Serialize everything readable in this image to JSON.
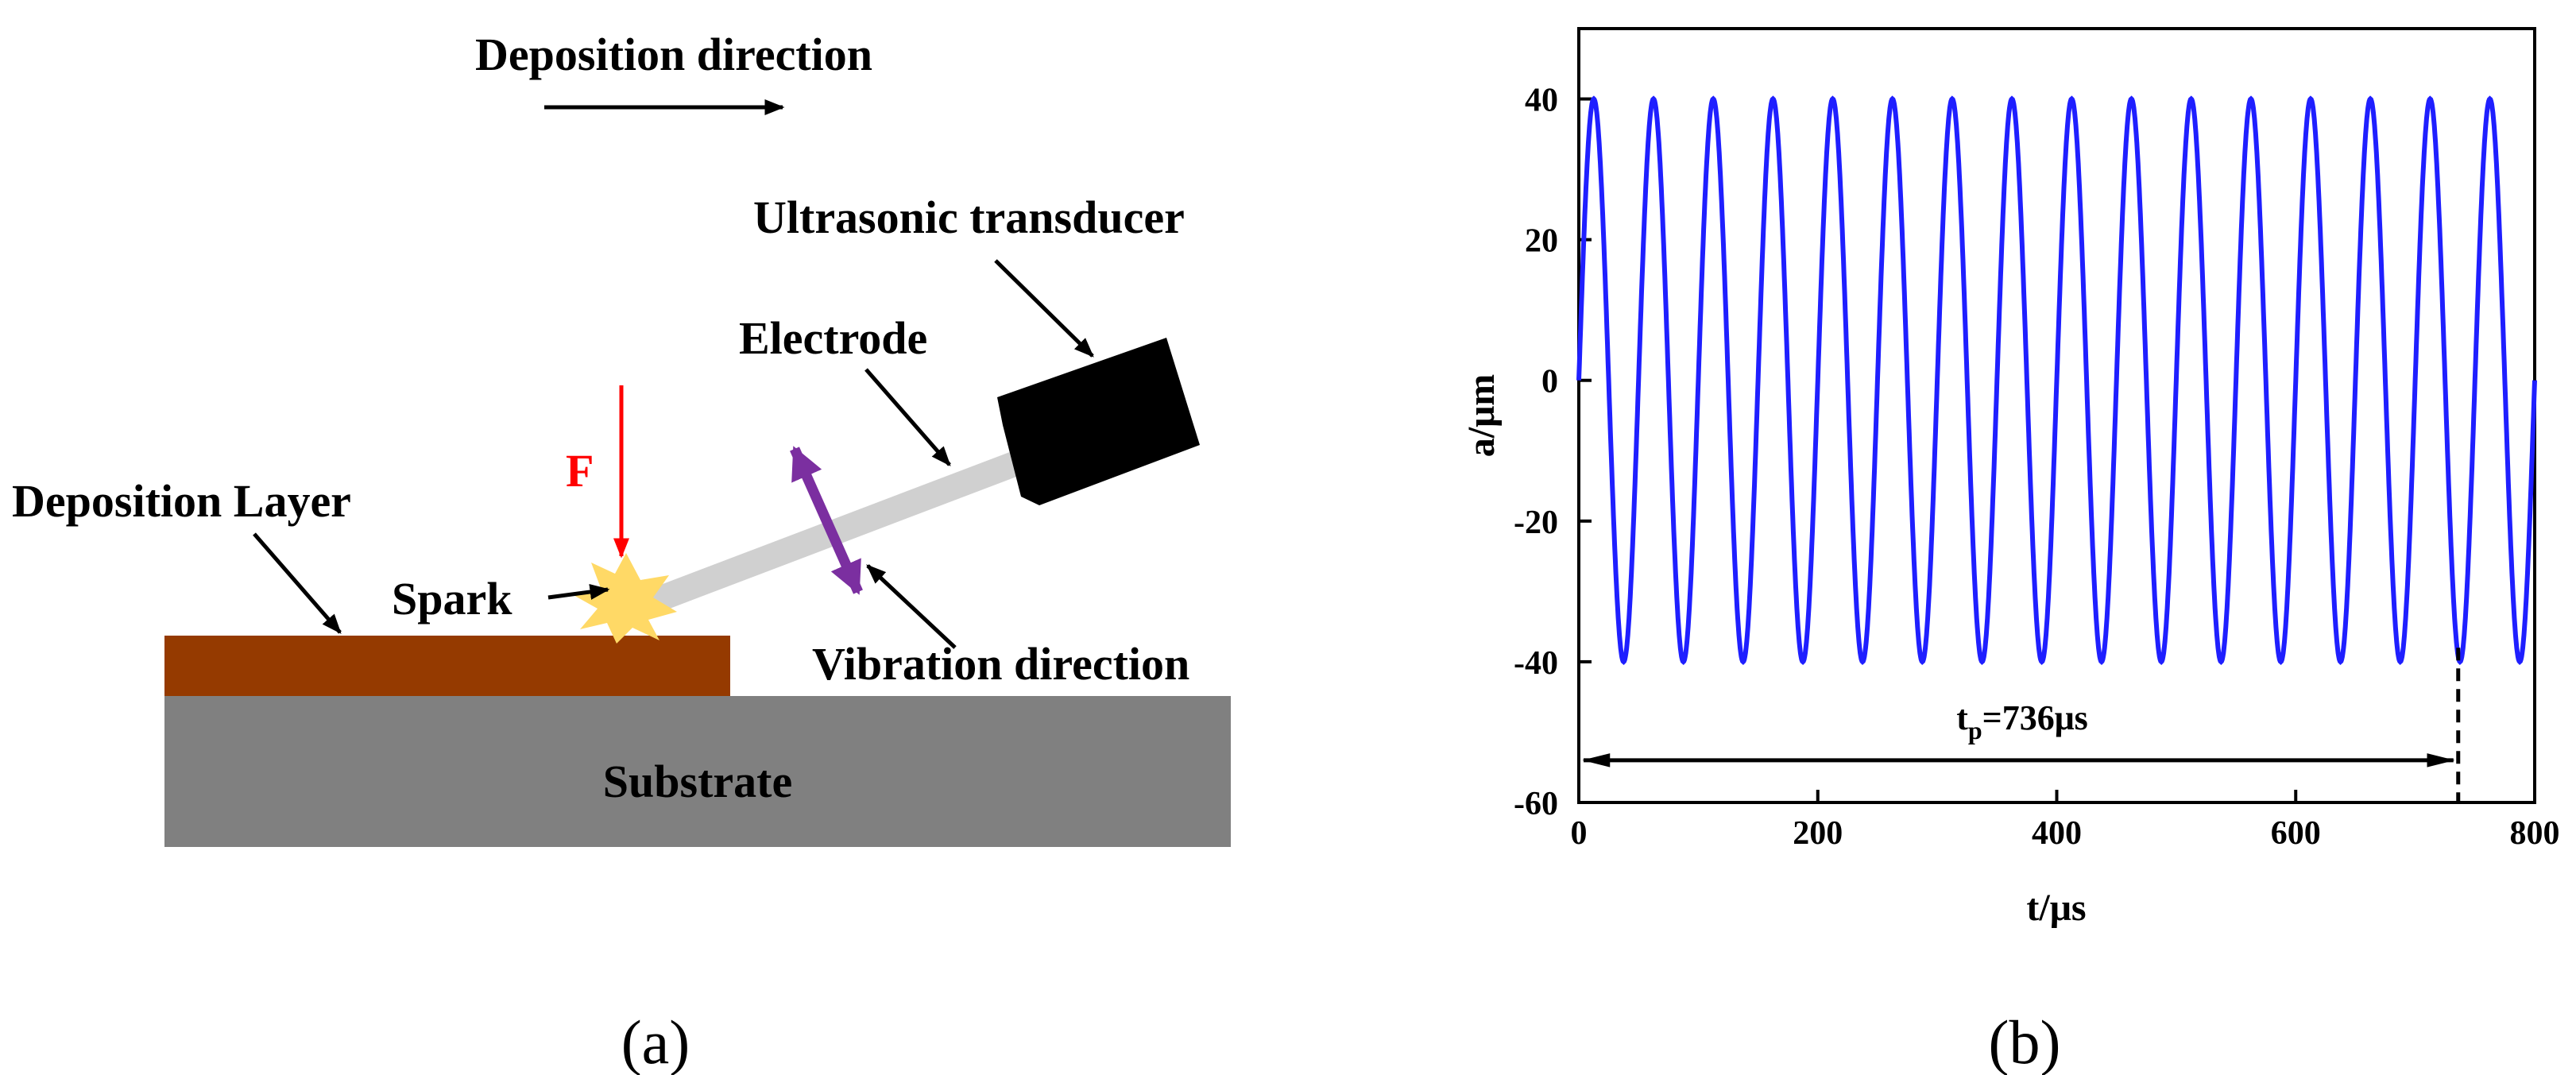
{
  "panel_a": {
    "label": "(a)",
    "deposition_direction": "Deposition direction",
    "ultrasonic_transducer": "Ultrasonic transducer",
    "electrode": "Electrode",
    "force": "F",
    "deposition_layer": "Deposition Layer",
    "spark": "Spark",
    "vibration_direction": "Vibration direction",
    "substrate": "Substrate",
    "colors": {
      "deposition_layer": "#953a00",
      "substrate": "#808080",
      "electrode": "#d0d0d0",
      "transducer": "#000000",
      "force_arrow": "#ff0000",
      "vibration_arrow": "#7b2fa0",
      "spark": "#ffd966"
    }
  },
  "panel_b": {
    "label": "(b)",
    "annotation_tp_main": "t",
    "annotation_tp_sub": "p",
    "annotation_tp_value": "=736μs",
    "chart_data": {
      "type": "line",
      "xlabel": "t/μs",
      "ylabel": "a/μm",
      "xlim": [
        0,
        800
      ],
      "ylim": [
        -60,
        50
      ],
      "xticks": [
        0,
        200,
        400,
        600,
        800
      ],
      "yticks": [
        40,
        20,
        0,
        -20,
        -40,
        -60
      ],
      "grid": false,
      "series": [
        {
          "function": "a = 40·sin(2π·f·t)",
          "amplitude_um": 40,
          "frequency_khz": 20,
          "period_us": 50,
          "t_range_us": [
            0,
            800
          ],
          "color": "#1f1fff"
        }
      ],
      "pulse_duration_us": 736
    }
  }
}
